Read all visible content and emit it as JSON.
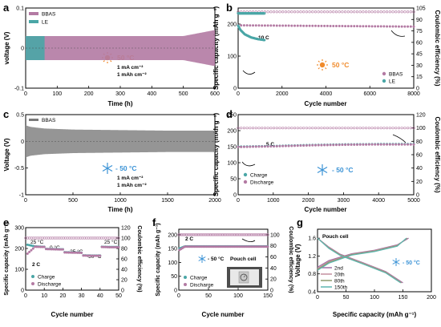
{
  "panels": {
    "a": {
      "label": "a",
      "ylabel": "voltage (V)",
      "xlabel": "Time (h)",
      "legend": [
        "BBAS",
        "LE"
      ],
      "temp": "50 °C",
      "cond1": "1 mA cm⁻²",
      "cond2": "1 mAh cm⁻²"
    },
    "b": {
      "label": "b",
      "ylabel": "Specific capacity (mAh g⁻¹)",
      "ylabel2": "Coulombic efficiency (%)",
      "xlabel": "Cycle number",
      "rate": "10 C",
      "temp": "50 °C",
      "legend": [
        "BBAS",
        "LE"
      ]
    },
    "c": {
      "label": "c",
      "ylabel": "Voltage (V)",
      "xlabel": "Time (h)",
      "legend": [
        "BBAS"
      ],
      "temp": "- 50 °C",
      "cond1": "1 mA cm⁻²",
      "cond2": "1 mAh cm⁻²"
    },
    "d": {
      "label": "d",
      "ylabel": "Specific capacity (mAh g⁻¹)",
      "ylabel2": "Coulombic efficiency (%)",
      "xlabel": "Cycle number",
      "rate": "5 C",
      "temp": "- 50 °C",
      "legend": [
        "Charge",
        "Discharge"
      ]
    },
    "e": {
      "label": "e",
      "ylabel": "Specific capacity (mAh g⁻¹)",
      "ylabel2": "Coulombic efficiency (%)",
      "xlabel": "Cycle number",
      "rate": "2 C",
      "temps": [
        "25 °C",
        "0 °C",
        "-25 °C",
        "-50 °C",
        "25 °C"
      ],
      "legend": [
        "Charge",
        "Discharge"
      ]
    },
    "f": {
      "label": "f",
      "ylabel": "Specific capacity (mAh g⁻¹)",
      "ylabel2": "Coulombic efficiency (%)",
      "xlabel": "Cycle number",
      "rate": "2 C",
      "temp": "- 50 °C",
      "cell": "Pouch cell",
      "legend": [
        "Charge",
        "Discharge"
      ]
    },
    "g": {
      "label": "g",
      "ylabel": "Voltage (V)",
      "xlabel": "Specific capacity (mAh g⁻¹)",
      "cell": "Pouch cell",
      "temp": "- 50 °C",
      "legend": [
        "2nd",
        "20th",
        "80th",
        "150th"
      ]
    }
  },
  "colors": {
    "bbas": "#b37aa3",
    "le": "#4aa6a6",
    "sun": "#f08b2c",
    "snow": "#3b93d6",
    "g2": "#9e6da2",
    "g20": "#c48f9f",
    "g80": "#8e9a6e",
    "g150": "#5cb5b0"
  },
  "chart_data": [
    {
      "panel": "a",
      "type": "line",
      "xlim": [
        0,
        600
      ],
      "ylim": [
        -0.1,
        0.1
      ],
      "xticks": [
        0,
        100,
        200,
        300,
        400,
        500,
        600
      ],
      "yticks": [
        -0.1,
        0.0,
        0.1
      ],
      "series": [
        {
          "name": "BBAS",
          "x": [
            0,
            100,
            200,
            300,
            400,
            500,
            600
          ],
          "y_upper": [
            0.03,
            0.03,
            0.03,
            0.03,
            0.03,
            0.03,
            0.045
          ],
          "y_lower": [
            -0.03,
            -0.03,
            -0.03,
            -0.03,
            -0.03,
            -0.03,
            -0.045
          ]
        },
        {
          "name": "LE",
          "x": [
            0,
            60
          ],
          "y_upper": [
            0.03,
            0.03
          ],
          "y_lower": [
            -0.03,
            -0.03
          ]
        }
      ]
    },
    {
      "panel": "b",
      "type": "scatter",
      "xlim": [
        0,
        8000
      ],
      "ylim": [
        0,
        250
      ],
      "y2lim": [
        0,
        105
      ],
      "xticks": [
        0,
        2000,
        4000,
        6000,
        8000
      ],
      "yticks": [
        0,
        100,
        200
      ],
      "y2ticks": [
        0,
        15,
        30,
        45,
        60,
        75,
        90,
        105
      ],
      "series": [
        {
          "name": "BBAS capacity",
          "x": [
            0,
            2000,
            4000,
            6000,
            8000
          ],
          "y": [
            196,
            195,
            194,
            193,
            192
          ]
        },
        {
          "name": "LE capacity",
          "x": [
            0,
            100,
            300,
            600,
            900,
            1200
          ],
          "y": [
            195,
            182,
            168,
            158,
            153,
            150
          ]
        },
        {
          "name": "BBAS CE",
          "x": [
            0,
            8000
          ],
          "y": [
            100,
            100
          ]
        },
        {
          "name": "LE CE",
          "x": [
            0,
            1200
          ],
          "y": [
            98,
            98
          ]
        }
      ]
    },
    {
      "panel": "c",
      "type": "line",
      "xlim": [
        0,
        2000
      ],
      "ylim": [
        -1.0,
        0.5
      ],
      "xticks": [
        0,
        500,
        1000,
        1500,
        2000
      ],
      "yticks": [
        -1.0,
        -0.5,
        0.0,
        0.5
      ],
      "series": [
        {
          "name": "BBAS",
          "x": [
            0,
            50,
            200,
            500,
            1000,
            1500,
            2000
          ],
          "y_upper": [
            0.3,
            0.27,
            0.24,
            0.22,
            0.21,
            0.2,
            0.2
          ],
          "y_lower": [
            -0.3,
            -0.27,
            -0.24,
            -0.22,
            -0.21,
            -0.2,
            -0.2
          ]
        }
      ]
    },
    {
      "panel": "d",
      "type": "scatter",
      "xlim": [
        0,
        5000
      ],
      "ylim": [
        0,
        250
      ],
      "y2lim": [
        0,
        120
      ],
      "xticks": [
        0,
        1000,
        2000,
        3000,
        4000,
        5000
      ],
      "yticks": [
        0,
        50,
        100,
        150,
        200,
        250
      ],
      "y2ticks": [
        0,
        20,
        40,
        60,
        80,
        100,
        120
      ],
      "series": [
        {
          "name": "Charge",
          "x": [
            0,
            1000,
            2000,
            3000,
            4000,
            5000
          ],
          "y": [
            150,
            152,
            155,
            157,
            158,
            158
          ]
        },
        {
          "name": "Discharge",
          "x": [
            0,
            1000,
            2000,
            3000,
            4000,
            5000
          ],
          "y": [
            149,
            151,
            154,
            156,
            157,
            157
          ]
        },
        {
          "name": "CE",
          "x": [
            0,
            5000
          ],
          "y": [
            100,
            100
          ]
        }
      ]
    },
    {
      "panel": "e",
      "type": "scatter",
      "xlim": [
        0,
        50
      ],
      "ylim": [
        0,
        300
      ],
      "y2lim": [
        0,
        120
      ],
      "xticks": [
        0,
        10,
        20,
        30,
        40,
        50
      ],
      "yticks": [
        0,
        100,
        200,
        300
      ],
      "y2ticks": [
        0,
        20,
        40,
        60,
        80,
        100,
        120
      ],
      "series": [
        {
          "name": "Charge",
          "x": [
            1,
            5,
            10,
            11,
            15,
            20,
            21,
            25,
            30,
            31,
            35,
            40,
            41,
            45,
            50
          ],
          "y": [
            218,
            210,
            208,
            198,
            197,
            196,
            182,
            181,
            180,
            167,
            166,
            166,
            208,
            207,
            207
          ]
        },
        {
          "name": "Discharge",
          "x": [
            1,
            5,
            10,
            11,
            15,
            20,
            21,
            25,
            30,
            31,
            35,
            40,
            41,
            45,
            50
          ],
          "y": [
            175,
            208,
            207,
            197,
            196,
            195,
            181,
            180,
            179,
            166,
            165,
            165,
            207,
            206,
            206
          ]
        },
        {
          "name": "CE",
          "x": [
            0,
            50
          ],
          "y": [
            100,
            100
          ]
        }
      ]
    },
    {
      "panel": "f",
      "type": "scatter",
      "xlim": [
        0,
        150
      ],
      "ylim": [
        0,
        220
      ],
      "y2lim": [
        0,
        110
      ],
      "xticks": [
        0,
        50,
        100,
        150
      ],
      "yticks": [
        0,
        50,
        100,
        150,
        200
      ],
      "y2ticks": [
        0,
        20,
        40,
        60,
        80,
        100
      ],
      "series": [
        {
          "name": "Charge",
          "x": [
            1,
            10,
            50,
            100,
            150
          ],
          "y": [
            150,
            158,
            158,
            158,
            158
          ]
        },
        {
          "name": "Discharge",
          "x": [
            1,
            10,
            50,
            100,
            150
          ],
          "y": [
            145,
            157,
            157,
            157,
            157
          ]
        },
        {
          "name": "CE",
          "x": [
            0,
            150
          ],
          "y": [
            100,
            100
          ]
        }
      ]
    },
    {
      "panel": "g",
      "type": "line",
      "xlim": [
        0,
        200
      ],
      "ylim": [
        0.4,
        1.8
      ],
      "xticks": [
        0,
        50,
        100,
        150,
        200
      ],
      "yticks": [
        0.4,
        0.8,
        1.2,
        1.6
      ],
      "series": [
        {
          "name": "2nd",
          "charge": [
            [
              0,
              0.95
            ],
            [
              20,
              1.1
            ],
            [
              60,
              1.25
            ],
            [
              100,
              1.33
            ],
            [
              140,
              1.45
            ],
            [
              160,
              1.6
            ]
          ],
          "discharge": [
            [
              0,
              1.6
            ],
            [
              20,
              1.4
            ],
            [
              40,
              1.24
            ],
            [
              80,
              1.05
            ],
            [
              120,
              0.85
            ],
            [
              150,
              0.6
            ]
          ]
        },
        {
          "name": "20th",
          "charge": [
            [
              0,
              0.92
            ],
            [
              20,
              1.08
            ],
            [
              60,
              1.24
            ],
            [
              100,
              1.32
            ],
            [
              140,
              1.44
            ],
            [
              158,
              1.6
            ]
          ],
          "discharge": [
            [
              0,
              1.6
            ],
            [
              20,
              1.39
            ],
            [
              40,
              1.23
            ],
            [
              80,
              1.04
            ],
            [
              120,
              0.84
            ],
            [
              148,
              0.6
            ]
          ]
        },
        {
          "name": "80th",
          "charge": [
            [
              0,
              0.9
            ],
            [
              20,
              1.06
            ],
            [
              60,
              1.23
            ],
            [
              100,
              1.31
            ],
            [
              140,
              1.43
            ],
            [
              157,
              1.6
            ]
          ],
          "discharge": [
            [
              0,
              1.6
            ],
            [
              20,
              1.38
            ],
            [
              40,
              1.22
            ],
            [
              80,
              1.03
            ],
            [
              120,
              0.83
            ],
            [
              147,
              0.6
            ]
          ]
        },
        {
          "name": "150th",
          "charge": [
            [
              0,
              0.88
            ],
            [
              20,
              1.04
            ],
            [
              60,
              1.22
            ],
            [
              100,
              1.3
            ],
            [
              140,
              1.42
            ],
            [
              156,
              1.6
            ]
          ],
          "discharge": [
            [
              0,
              1.6
            ],
            [
              20,
              1.37
            ],
            [
              40,
              1.21
            ],
            [
              80,
              1.02
            ],
            [
              120,
              0.82
            ],
            [
              146,
              0.6
            ]
          ]
        }
      ]
    }
  ]
}
